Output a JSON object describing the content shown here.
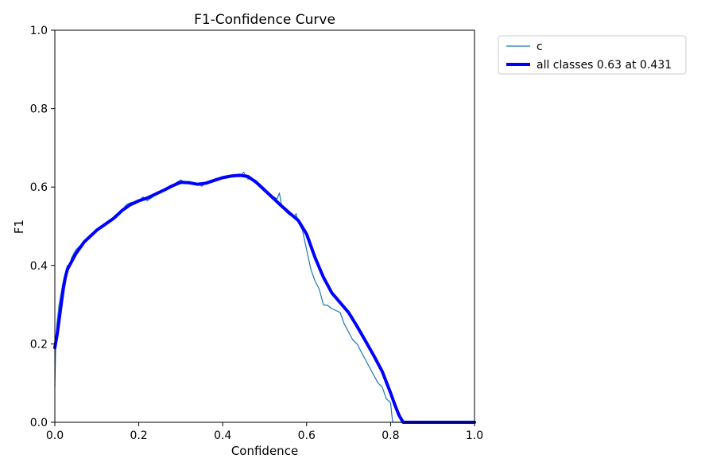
{
  "chart_data": {
    "type": "line",
    "title": "F1-Confidence Curve",
    "xlabel": "Confidence",
    "ylabel": "F1",
    "xlim": [
      0.0,
      1.0
    ],
    "ylim": [
      0.0,
      1.0
    ],
    "x_ticks": [
      "0.0",
      "0.2",
      "0.4",
      "0.6",
      "0.8",
      "1.0"
    ],
    "y_ticks": [
      "0.0",
      "0.2",
      "0.4",
      "0.6",
      "0.8",
      "1.0"
    ],
    "grid": false,
    "legend_position": "upper right, outside plot",
    "series": [
      {
        "name": "c",
        "color": "#1f77b4",
        "x": [
          0.0,
          0.002,
          0.005,
          0.01,
          0.015,
          0.02,
          0.025,
          0.03,
          0.035,
          0.04,
          0.05,
          0.06,
          0.07,
          0.08,
          0.1,
          0.12,
          0.14,
          0.16,
          0.17,
          0.18,
          0.2,
          0.21,
          0.22,
          0.24,
          0.26,
          0.28,
          0.3,
          0.31,
          0.32,
          0.34,
          0.35,
          0.36,
          0.38,
          0.4,
          0.42,
          0.43,
          0.44,
          0.45,
          0.46,
          0.47,
          0.48,
          0.5,
          0.51,
          0.52,
          0.53,
          0.535,
          0.54,
          0.55,
          0.56,
          0.57,
          0.575,
          0.58,
          0.59,
          0.6,
          0.61,
          0.62,
          0.63,
          0.64,
          0.65,
          0.66,
          0.67,
          0.68,
          0.69,
          0.7,
          0.71,
          0.72,
          0.73,
          0.74,
          0.75,
          0.76,
          0.77,
          0.78,
          0.79,
          0.8,
          0.805,
          0.806,
          0.82,
          0.85,
          0.9,
          0.95,
          1.0
        ],
        "values": [
          0.09,
          0.2,
          0.25,
          0.3,
          0.33,
          0.36,
          0.38,
          0.4,
          0.4,
          0.42,
          0.44,
          0.45,
          0.46,
          0.47,
          0.49,
          0.505,
          0.52,
          0.54,
          0.555,
          0.56,
          0.565,
          0.575,
          0.565,
          0.58,
          0.59,
          0.605,
          0.618,
          0.612,
          0.614,
          0.608,
          0.602,
          0.61,
          0.62,
          0.625,
          0.627,
          0.628,
          0.626,
          0.638,
          0.62,
          0.622,
          0.616,
          0.596,
          0.582,
          0.576,
          0.57,
          0.585,
          0.555,
          0.538,
          0.528,
          0.526,
          0.532,
          0.51,
          0.49,
          0.44,
          0.39,
          0.36,
          0.34,
          0.3,
          0.298,
          0.29,
          0.285,
          0.28,
          0.25,
          0.23,
          0.21,
          0.2,
          0.18,
          0.16,
          0.14,
          0.12,
          0.1,
          0.09,
          0.06,
          0.05,
          0.0,
          0.0,
          0.0,
          0.0,
          0.0,
          0.0,
          0.0
        ]
      },
      {
        "name": "all classes 0.63 at 0.431",
        "color": "#0000ff",
        "x": [
          0.0,
          0.005,
          0.01,
          0.015,
          0.02,
          0.025,
          0.03,
          0.04,
          0.05,
          0.06,
          0.07,
          0.08,
          0.1,
          0.12,
          0.14,
          0.16,
          0.18,
          0.2,
          0.22,
          0.24,
          0.26,
          0.28,
          0.3,
          0.32,
          0.34,
          0.36,
          0.38,
          0.4,
          0.42,
          0.44,
          0.46,
          0.48,
          0.5,
          0.52,
          0.54,
          0.56,
          0.58,
          0.6,
          0.62,
          0.64,
          0.66,
          0.68,
          0.7,
          0.72,
          0.74,
          0.76,
          0.78,
          0.8,
          0.81,
          0.82,
          0.83,
          0.85,
          0.9,
          0.95,
          1.0
        ],
        "values": [
          0.19,
          0.22,
          0.26,
          0.3,
          0.34,
          0.37,
          0.39,
          0.41,
          0.43,
          0.445,
          0.46,
          0.47,
          0.49,
          0.505,
          0.52,
          0.54,
          0.555,
          0.565,
          0.572,
          0.582,
          0.592,
          0.603,
          0.612,
          0.611,
          0.607,
          0.61,
          0.617,
          0.624,
          0.628,
          0.63,
          0.627,
          0.612,
          0.592,
          0.572,
          0.552,
          0.533,
          0.515,
          0.48,
          0.42,
          0.37,
          0.33,
          0.305,
          0.28,
          0.245,
          0.208,
          0.17,
          0.13,
          0.075,
          0.045,
          0.018,
          0.0,
          0.0,
          0.0,
          0.0,
          0.0
        ]
      }
    ]
  }
}
